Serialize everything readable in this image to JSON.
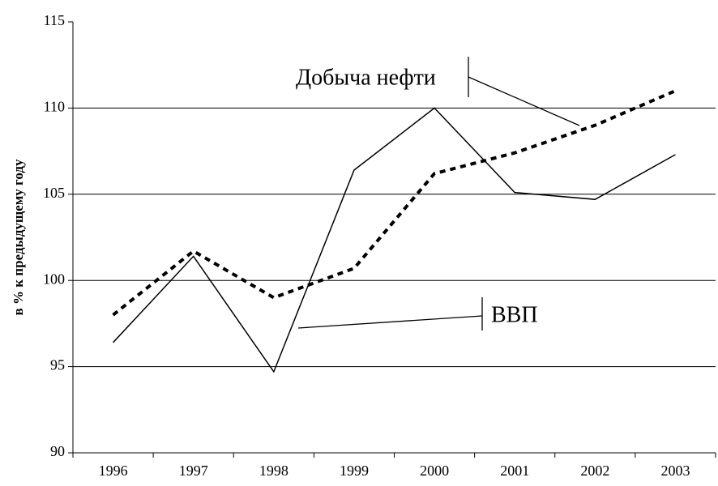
{
  "chart_data": {
    "type": "line",
    "y_label": "в % к предыдущему году",
    "categories": [
      "1996",
      "1997",
      "1998",
      "1999",
      "2000",
      "2001",
      "2002",
      "2003"
    ],
    "series": [
      {
        "name": "ВВП",
        "color": "#000000",
        "dash": "solid",
        "values": [
          96.4,
          101.4,
          94.7,
          106.4,
          110.0,
          105.1,
          104.7,
          107.3
        ]
      },
      {
        "name": "Добыча нефти",
        "color": "#000000",
        "dash": "dotted",
        "values": [
          98.0,
          101.7,
          99.0,
          100.7,
          106.2,
          107.4,
          109.0,
          111.0
        ]
      }
    ],
    "ylim": [
      90,
      115
    ],
    "yticks": [
      90,
      95,
      100,
      105,
      110,
      115
    ],
    "grid": true
  }
}
